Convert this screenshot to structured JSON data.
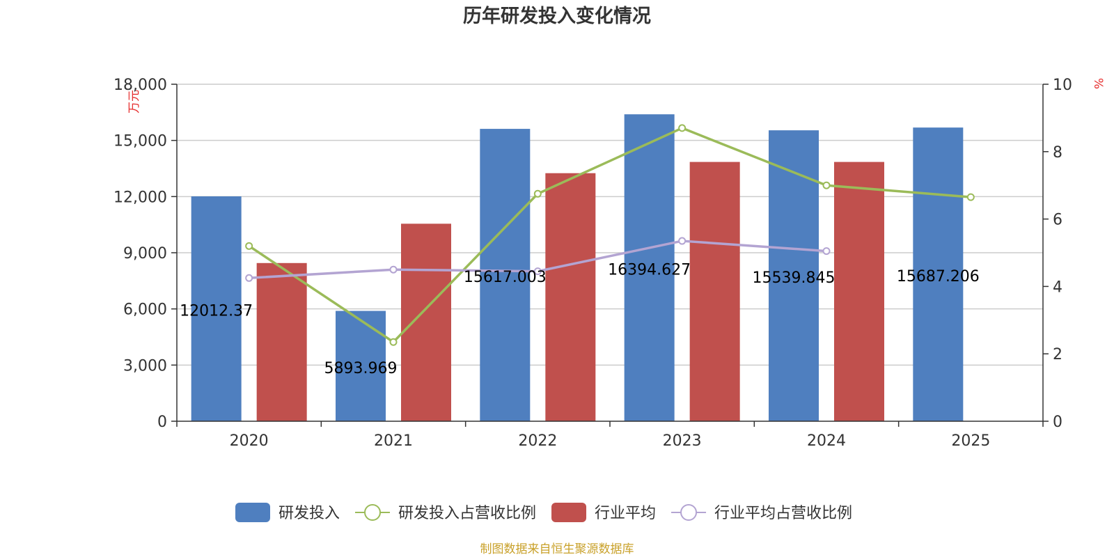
{
  "chart_data": {
    "type": "bar",
    "title": "历年研发投入变化情况",
    "categories": [
      "2020",
      "2021",
      "2022",
      "2023",
      "2024",
      "2025"
    ],
    "y_left": {
      "unit": "万元",
      "min": 0,
      "max": 18000,
      "ticks": [
        0,
        3000,
        6000,
        9000,
        12000,
        15000,
        18000
      ],
      "tick_labels": [
        "0",
        "3,000",
        "6,000",
        "9,000",
        "12,000",
        "15,000",
        "18,000"
      ]
    },
    "y_right": {
      "unit": "%",
      "min": 0,
      "max": 10,
      "ticks": [
        0,
        2,
        4,
        6,
        8,
        10
      ],
      "tick_labels": [
        "0",
        "2",
        "4",
        "6",
        "8",
        "10"
      ]
    },
    "grid": true,
    "legend_position": "bottom",
    "series": [
      {
        "name": "研发投入",
        "type": "bar",
        "axis": "left",
        "color": "#4f7fbf",
        "values": [
          12012.37,
          5893.969,
          15617.003,
          16394.627,
          15539.845,
          15687.206
        ],
        "labels": [
          "12012.37",
          "5893.969",
          "15617.003",
          "16394.627",
          "15539.845",
          "15687.206"
        ]
      },
      {
        "name": "研发投入占营收比例",
        "type": "line",
        "axis": "right",
        "color": "#9bbb59",
        "values": [
          5.2,
          2.35,
          6.75,
          8.7,
          7.0,
          6.65
        ]
      },
      {
        "name": "行业平均",
        "type": "bar",
        "axis": "left",
        "color": "#c0504d",
        "values": [
          8450,
          10550,
          13250,
          13850,
          13850,
          null
        ]
      },
      {
        "name": "行业平均占营收比例",
        "type": "line",
        "axis": "right",
        "color": "#b3a4d2",
        "values": [
          4.25,
          4.5,
          4.45,
          5.35,
          5.05,
          null
        ]
      }
    ],
    "source": "制图数据来自恒生聚源数据库"
  }
}
